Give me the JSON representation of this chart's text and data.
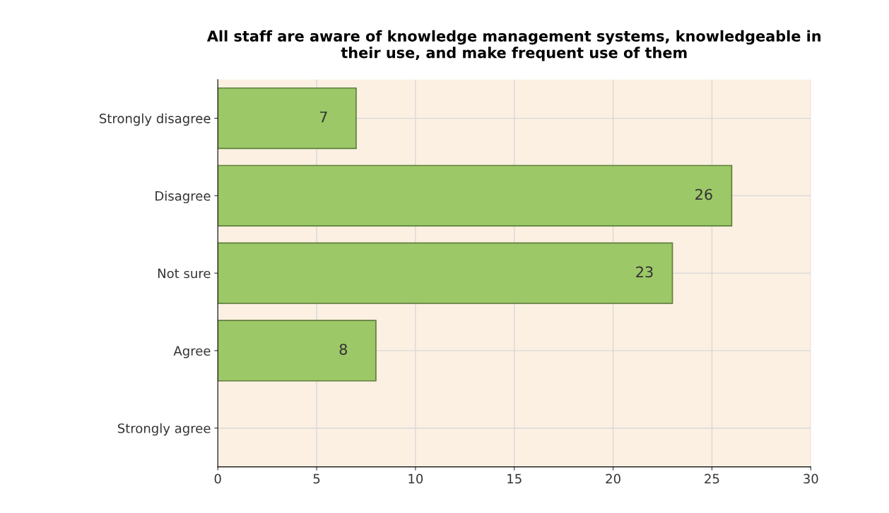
{
  "chart_data": {
    "type": "bar",
    "orientation": "horizontal",
    "title": "All staff are aware of knowledge management systems, knowledgeable in\ntheir use, and make frequent use of them",
    "categories": [
      "Strongly disagree",
      "Disagree",
      "Not sure",
      "Agree",
      "Strongly agree"
    ],
    "values": [
      7,
      26,
      23,
      8,
      null
    ],
    "value_labels": [
      "7",
      "26",
      "23",
      "8",
      null
    ],
    "color": "#9dc868",
    "xlim": [
      0,
      30
    ],
    "xticks": [
      0,
      5,
      10,
      15,
      20,
      25,
      30
    ],
    "grid": true
  }
}
